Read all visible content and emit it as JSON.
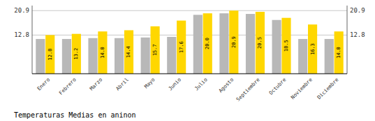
{
  "chart_data": {
    "type": "bar",
    "title": "Temperaturas Medias en aninon",
    "categories": [
      "Enero",
      "Febrero",
      "Marzo",
      "Abril",
      "Mayo",
      "Junio",
      "Julio",
      "Agosto",
      "Septiembre",
      "Octubre",
      "Noviembre",
      "Diciembre"
    ],
    "series": [
      {
        "color": "#B8B8B8",
        "values": [
          11.5,
          11.5,
          11.8,
          11.8,
          12.0,
          12.2,
          19.5,
          20.0,
          19.8,
          17.8,
          11.5,
          11.5
        ]
      },
      {
        "color": "#FFD700",
        "values": [
          12.8,
          13.2,
          14.0,
          14.4,
          15.7,
          17.6,
          20.0,
          20.9,
          20.5,
          18.5,
          16.3,
          14.0
        ],
        "value_labels": [
          "12.8",
          "13.2",
          "14.0",
          "14.4",
          "15.7",
          "17.6",
          "20.0",
          "20.9",
          "20.5",
          "18.5",
          "16.3",
          "14.0"
        ],
        "data_labels": true
      }
    ],
    "ylim": [
      0,
      22.572
    ],
    "yticks": [
      12.8,
      20.9
    ],
    "y2lim": [
      0,
      22.572
    ],
    "y2ticks": [
      12.8,
      20.9
    ],
    "grid": true
  }
}
